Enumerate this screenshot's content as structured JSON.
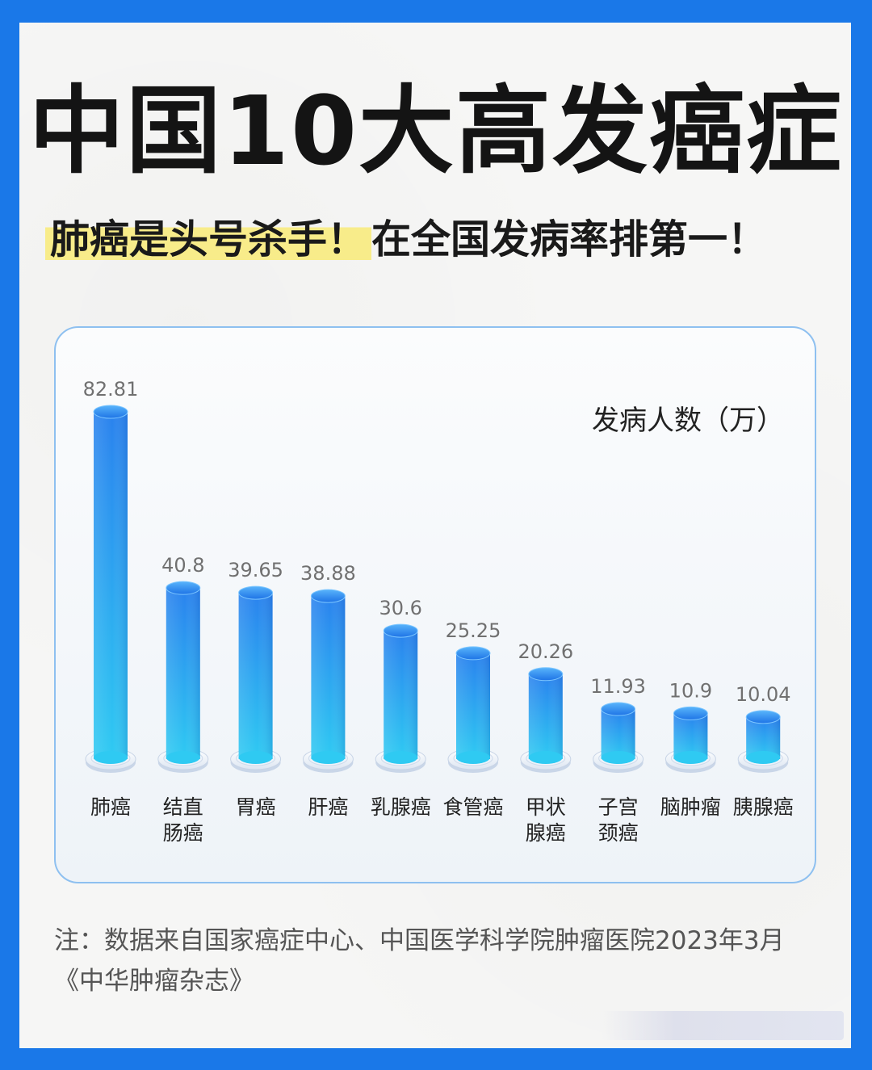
{
  "title": "中国10大高发癌症",
  "subtitle": {
    "highlight": "肺癌是头号杀手！",
    "rest": "在全国发病率排第一！"
  },
  "chart_data": {
    "type": "bar",
    "unit_label": "发病人数（万）",
    "categories": [
      [
        "肺癌"
      ],
      [
        "结直",
        "肠癌"
      ],
      [
        "胃癌"
      ],
      [
        "肝癌"
      ],
      [
        "乳腺癌"
      ],
      [
        "食管癌"
      ],
      [
        "甲状",
        "腺癌"
      ],
      [
        "子宫",
        "颈癌"
      ],
      [
        "脑肿瘤"
      ],
      [
        "胰腺癌"
      ]
    ],
    "values": [
      82.81,
      40.8,
      39.65,
      38.88,
      30.6,
      25.25,
      20.26,
      11.93,
      10.9,
      10.04
    ],
    "value_labels": [
      "82.81",
      "40.8",
      "39.65",
      "38.88",
      "30.6",
      "25.25",
      "20.26",
      "11.93",
      "10.9",
      "10.04"
    ],
    "colors": {
      "bar_top": "#2a82ee",
      "bar_bottom": "#2fcaf2",
      "value_text": "#707070",
      "category_text": "#222222"
    }
  },
  "footnote": "注：数据来自国家癌症中心、中国医学科学院肿瘤医院2023年3月《中华肿瘤杂志》"
}
